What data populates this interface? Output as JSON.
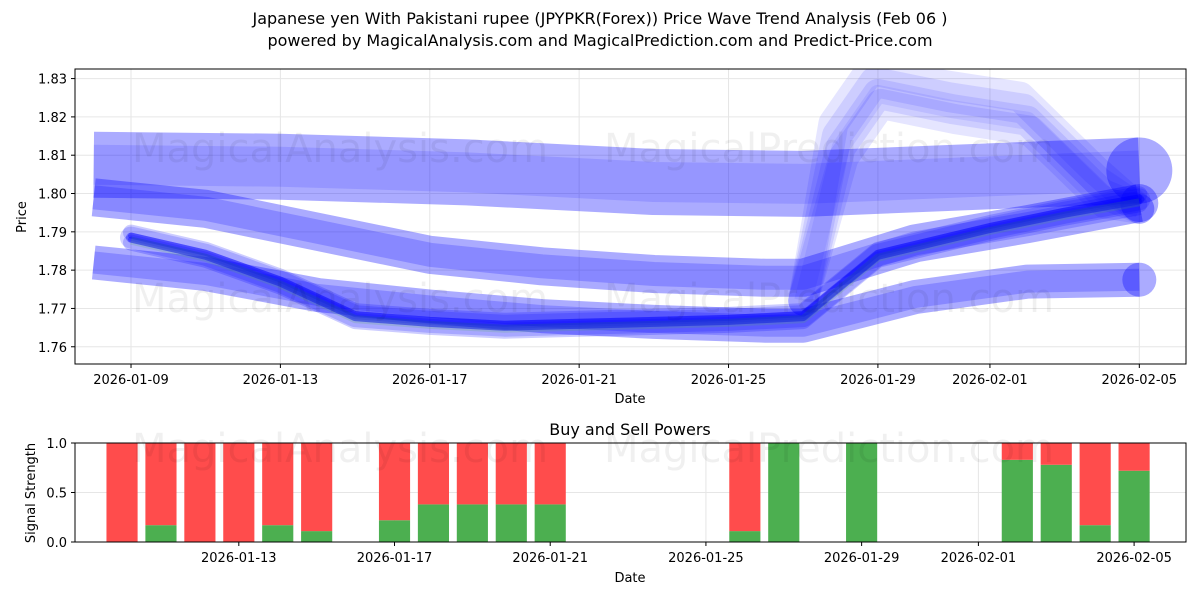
{
  "title_line1": "Japanese yen With Pakistani rupee (JPYPKR(Forex)) Price Wave Trend Analysis (Feb 06 )",
  "title_line2": "powered by MagicalAnalysis.com and MagicalPrediction.com and Predict-Price.com",
  "watermarks": [
    "MagicalAnalysis.com",
    "MagicalPrediction.com"
  ],
  "colors": {
    "band": "#0000ff",
    "buy": "#4caf50",
    "sell": "#ff4c4c"
  },
  "chart_data": [
    {
      "type": "area",
      "title": "",
      "xlabel": "Date",
      "ylabel": "Price",
      "ylim": [
        1.7555,
        1.8325
      ],
      "xlim": [
        "2026-01-07T12:00",
        "2026-02-06T06:00"
      ],
      "y_ticks": [
        1.76,
        1.77,
        1.78,
        1.79,
        1.8,
        1.81,
        1.82,
        1.83
      ],
      "y_tick_labels": [
        "1.76",
        "1.77",
        "1.78",
        "1.79",
        "1.80",
        "1.81",
        "1.82",
        "1.83"
      ],
      "x_ticks": [
        "2026-01-09",
        "2026-01-13",
        "2026-01-17",
        "2026-01-21",
        "2026-01-25",
        "2026-01-29",
        "2026-02-01",
        "2026-02-05"
      ],
      "grid": true,
      "series": [
        {
          "name": "upper band",
          "x": [
            "2026-01-08",
            "2026-01-13",
            "2026-01-18",
            "2026-01-23",
            "2026-01-27",
            "2026-02-01",
            "2026-02-05"
          ],
          "values": [
            1.8075,
            1.807,
            1.8055,
            1.803,
            1.8025,
            1.8045,
            1.806
          ]
        },
        {
          "name": "mid band",
          "x": [
            "2026-01-08",
            "2026-01-11",
            "2026-01-14",
            "2026-01-17",
            "2026-01-20",
            "2026-01-23",
            "2026-01-26",
            "2026-01-27",
            "2026-01-30",
            "2026-02-02",
            "2026-02-05"
          ],
          "values": [
            1.799,
            1.796,
            1.79,
            1.784,
            1.781,
            1.779,
            1.778,
            1.778,
            1.787,
            1.792,
            1.7975
          ]
        },
        {
          "name": "lower band",
          "x": [
            "2026-01-08",
            "2026-01-11",
            "2026-01-14",
            "2026-01-17",
            "2026-01-20",
            "2026-01-23",
            "2026-01-26",
            "2026-01-27",
            "2026-01-30",
            "2026-02-02",
            "2026-02-05"
          ],
          "values": [
            1.782,
            1.779,
            1.7735,
            1.7705,
            1.768,
            1.7665,
            1.7655,
            1.7655,
            1.773,
            1.777,
            1.7775
          ]
        },
        {
          "name": "price wave",
          "x": [
            "2026-01-09",
            "2026-01-11",
            "2026-01-13",
            "2026-01-15",
            "2026-01-17",
            "2026-01-19",
            "2026-01-21",
            "2026-01-23",
            "2026-01-25",
            "2026-01-27",
            "2026-01-29",
            "2026-02-01",
            "2026-02-03",
            "2026-02-05"
          ],
          "values": [
            1.7885,
            1.784,
            1.777,
            1.768,
            1.7665,
            1.7655,
            1.766,
            1.7665,
            1.767,
            1.768,
            1.784,
            1.791,
            1.795,
            1.7985
          ]
        },
        {
          "name": "rally spike",
          "x": [
            "2026-01-27",
            "2026-01-28",
            "2026-01-29",
            "2026-01-31",
            "2026-02-02",
            "2026-02-04",
            "2026-02-05"
          ],
          "values": [
            1.772,
            1.812,
            1.826,
            1.822,
            1.819,
            1.8,
            1.796
          ]
        }
      ]
    },
    {
      "type": "bar",
      "title": "Buy and Sell Powers",
      "xlabel": "Date",
      "ylabel": "Signal Strength",
      "ylim": [
        0,
        1.0
      ],
      "y_ticks": [
        0.0,
        0.5,
        1.0
      ],
      "y_tick_labels": [
        "0.0",
        "0.5",
        "1.0"
      ],
      "x_ticks": [
        "2026-01-13",
        "2026-01-17",
        "2026-01-21",
        "2026-01-25",
        "2026-01-29",
        "2026-02-01",
        "2026-02-05"
      ],
      "categories": [
        "2026-01-10",
        "2026-01-11",
        "2026-01-12",
        "2026-01-13",
        "2026-01-14",
        "2026-01-15",
        "2026-01-17",
        "2026-01-18",
        "2026-01-19",
        "2026-01-20",
        "2026-01-21",
        "2026-01-26",
        "2026-01-27",
        "2026-01-29",
        "2026-02-02",
        "2026-02-03",
        "2026-02-04",
        "2026-02-05"
      ],
      "series": [
        {
          "name": "Buy",
          "values": [
            0,
            0.17,
            0,
            0,
            0.17,
            0.11,
            0.22,
            0.38,
            0.38,
            0.38,
            0.38,
            0.11,
            1.0,
            1.0,
            0.83,
            0.78,
            0.17,
            0.72
          ]
        },
        {
          "name": "Sell",
          "values": [
            1.0,
            0.83,
            1.0,
            1.0,
            0.83,
            0.89,
            0.78,
            0.62,
            0.62,
            0.62,
            0.62,
            0.89,
            0,
            0,
            0.17,
            0.22,
            0.83,
            0.28
          ]
        }
      ]
    }
  ]
}
